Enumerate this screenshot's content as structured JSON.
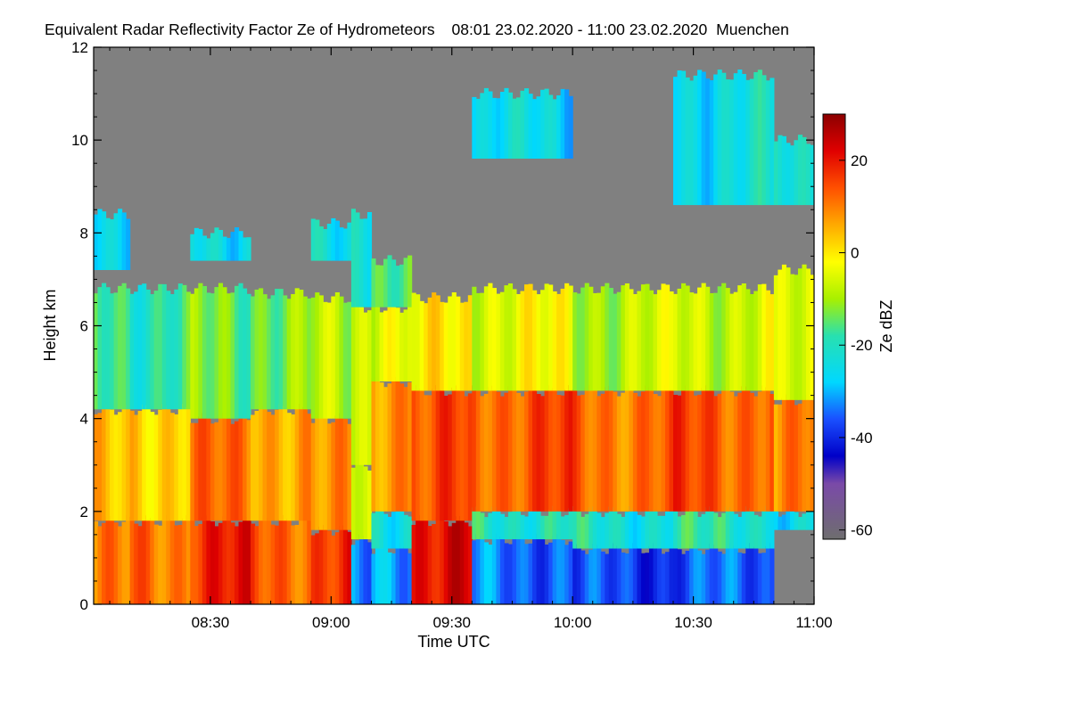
{
  "chart_data": {
    "type": "heatmap",
    "title": "Equivalent Radar Reflectivity Factor Ze of Hydrometeors",
    "time_range": "08:01 23.02.2020 - 11:00 23.02.2020",
    "location": "Muenchen",
    "xlabel": "Time UTC",
    "ylabel": "Height km",
    "colorbar_label": "Ze dBZ",
    "xlim_minutes": [
      481,
      660
    ],
    "ylim": [
      0,
      12
    ],
    "x_ticks": [
      {
        "minutes": 510,
        "label": "08:30"
      },
      {
        "minutes": 540,
        "label": "09:00"
      },
      {
        "minutes": 570,
        "label": "09:30"
      },
      {
        "minutes": 600,
        "label": "10:00"
      },
      {
        "minutes": 630,
        "label": "10:30"
      },
      {
        "minutes": 660,
        "label": "11:00"
      }
    ],
    "y_ticks": [
      0,
      2,
      4,
      6,
      8,
      10,
      12
    ],
    "colorbar_range": [
      -62,
      30
    ],
    "colorbar_ticks": [
      20,
      0,
      -20,
      -40,
      -60
    ],
    "colormap_stops": [
      {
        "v": -62,
        "c": "#6e6e6e"
      },
      {
        "v": -50,
        "c": "#7a4aa8"
      },
      {
        "v": -44,
        "c": "#0000c8"
      },
      {
        "v": -36,
        "c": "#1a50ff"
      },
      {
        "v": -28,
        "c": "#00d8ff"
      },
      {
        "v": -18,
        "c": "#28e0b0"
      },
      {
        "v": -10,
        "c": "#a8f000"
      },
      {
        "v": -2,
        "c": "#ffff00"
      },
      {
        "v": 6,
        "c": "#ffaa00"
      },
      {
        "v": 14,
        "c": "#ff5000"
      },
      {
        "v": 22,
        "c": "#e00000"
      },
      {
        "v": 30,
        "c": "#8c0000"
      }
    ],
    "background_color": "#808080",
    "no_data_value": null,
    "column_profiles": [
      {
        "t0": 481,
        "t1": 490,
        "layers": [
          [
            0,
            1.8,
            8
          ],
          [
            1.8,
            4.2,
            2
          ],
          [
            4.2,
            6.8,
            -16
          ],
          [
            7.2,
            8.4,
            -24
          ]
        ]
      },
      {
        "t0": 490,
        "t1": 505,
        "layers": [
          [
            0,
            1.8,
            12
          ],
          [
            1.8,
            4.2,
            4
          ],
          [
            4.2,
            6.8,
            -18
          ]
        ]
      },
      {
        "t0": 505,
        "t1": 520,
        "layers": [
          [
            0,
            1.8,
            18
          ],
          [
            1.8,
            4.0,
            10
          ],
          [
            4.0,
            6.8,
            -14
          ],
          [
            7.4,
            8.0,
            -24
          ]
        ]
      },
      {
        "t0": 520,
        "t1": 535,
        "layers": [
          [
            0,
            1.8,
            14
          ],
          [
            1.8,
            4.2,
            8
          ],
          [
            4.2,
            6.7,
            -12
          ]
        ]
      },
      {
        "t0": 535,
        "t1": 545,
        "layers": [
          [
            0,
            1.6,
            16
          ],
          [
            1.6,
            4.0,
            6
          ],
          [
            4.0,
            6.6,
            -10
          ],
          [
            7.4,
            8.2,
            -24
          ]
        ]
      },
      {
        "t0": 545,
        "t1": 550,
        "layers": [
          [
            0,
            1.4,
            -36
          ],
          [
            1.4,
            3.0,
            -6
          ],
          [
            3.0,
            6.4,
            -6
          ],
          [
            6.4,
            8.4,
            -20
          ]
        ]
      },
      {
        "t0": 550,
        "t1": 560,
        "layers": [
          [
            0,
            1.2,
            -30
          ],
          [
            1.2,
            2.0,
            -22
          ],
          [
            2.0,
            4.8,
            10
          ],
          [
            4.8,
            6.4,
            -4
          ],
          [
            6.4,
            7.4,
            -18
          ]
        ]
      },
      {
        "t0": 560,
        "t1": 575,
        "layers": [
          [
            0,
            1.8,
            22
          ],
          [
            1.8,
            4.6,
            14
          ],
          [
            4.6,
            6.6,
            -2
          ]
        ]
      },
      {
        "t0": 575,
        "t1": 600,
        "layers": [
          [
            0,
            1.4,
            -34
          ],
          [
            1.4,
            2.0,
            -20
          ],
          [
            2.0,
            4.6,
            14
          ],
          [
            4.6,
            6.8,
            -4
          ],
          [
            9.6,
            11.0,
            -26
          ]
        ]
      },
      {
        "t0": 600,
        "t1": 625,
        "layers": [
          [
            0,
            1.2,
            -38
          ],
          [
            1.2,
            2.0,
            -22
          ],
          [
            2.0,
            4.6,
            12
          ],
          [
            4.6,
            6.8,
            -8
          ]
        ]
      },
      {
        "t0": 625,
        "t1": 650,
        "layers": [
          [
            0,
            1.2,
            -36
          ],
          [
            1.2,
            2.0,
            -20
          ],
          [
            2.0,
            4.6,
            14
          ],
          [
            4.6,
            6.8,
            -6
          ],
          [
            8.6,
            11.4,
            -24
          ]
        ]
      },
      {
        "t0": 650,
        "t1": 660,
        "layers": [
          [
            1.6,
            2.0,
            -24
          ],
          [
            2.0,
            4.4,
            10
          ],
          [
            4.4,
            7.2,
            -8
          ],
          [
            8.6,
            10.0,
            -24
          ]
        ]
      }
    ]
  }
}
